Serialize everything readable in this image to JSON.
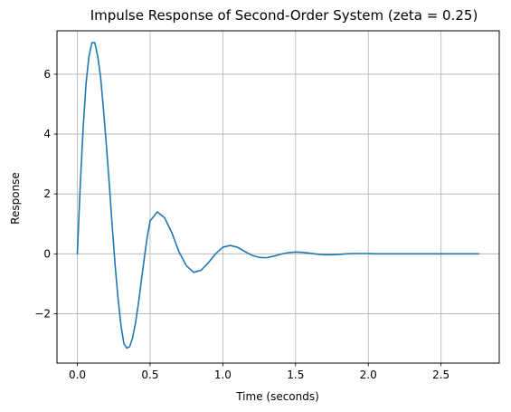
{
  "chart_data": {
    "type": "line",
    "title": "Impulse Response of Second-Order System (zeta = 0.25)",
    "xlabel": "Time (seconds)",
    "ylabel": "Response",
    "xlim": [
      -0.14,
      2.9
    ],
    "ylim": [
      -3.65,
      7.45
    ],
    "xticks": [
      0.0,
      0.5,
      1.0,
      1.5,
      2.0,
      2.5
    ],
    "xtick_labels": [
      "0.0",
      "0.5",
      "1.0",
      "1.5",
      "2.0",
      "2.5"
    ],
    "yticks": [
      -2,
      0,
      2,
      4,
      6
    ],
    "ytick_labels": [
      "−2",
      "0",
      "2",
      "4",
      "6"
    ],
    "grid": true,
    "series": [
      {
        "color": "#1f77b4",
        "x": [
          0.0,
          0.02,
          0.04,
          0.06,
          0.08,
          0.1,
          0.12,
          0.14,
          0.16,
          0.18,
          0.2,
          0.22,
          0.24,
          0.26,
          0.28,
          0.3,
          0.32,
          0.34,
          0.36,
          0.38,
          0.4,
          0.42,
          0.44,
          0.46,
          0.48,
          0.5,
          0.55,
          0.6,
          0.65,
          0.7,
          0.75,
          0.8,
          0.85,
          0.9,
          0.95,
          1.0,
          1.05,
          1.1,
          1.15,
          1.2,
          1.25,
          1.3,
          1.35,
          1.4,
          1.45,
          1.5,
          1.55,
          1.6,
          1.65,
          1.7,
          1.75,
          1.8,
          1.85,
          1.9,
          1.95,
          2.0,
          2.05,
          2.1,
          2.15,
          2.2,
          2.25,
          2.3,
          2.35,
          2.4,
          2.45,
          2.5,
          2.55,
          2.6,
          2.65,
          2.7,
          2.76
        ],
        "y": [
          0.0,
          2.3,
          4.2,
          5.7,
          6.6,
          7.05,
          7.05,
          6.6,
          5.9,
          4.8,
          3.6,
          2.3,
          0.9,
          -0.4,
          -1.5,
          -2.4,
          -3.0,
          -3.15,
          -3.1,
          -2.8,
          -2.3,
          -1.65,
          -0.9,
          -0.15,
          0.55,
          1.1,
          1.4,
          1.2,
          0.7,
          0.05,
          -0.4,
          -0.62,
          -0.55,
          -0.3,
          0.0,
          0.22,
          0.28,
          0.22,
          0.08,
          -0.05,
          -0.12,
          -0.13,
          -0.08,
          -0.01,
          0.04,
          0.06,
          0.05,
          0.02,
          -0.01,
          -0.03,
          -0.03,
          -0.02,
          0.0,
          0.01,
          0.01,
          0.01,
          0.0,
          0.0,
          0.0,
          0.0,
          0.0,
          0.0,
          0.0,
          0.0,
          0.0,
          0.0,
          0.0,
          0.0,
          0.0,
          0.0,
          0.0
        ]
      }
    ]
  }
}
